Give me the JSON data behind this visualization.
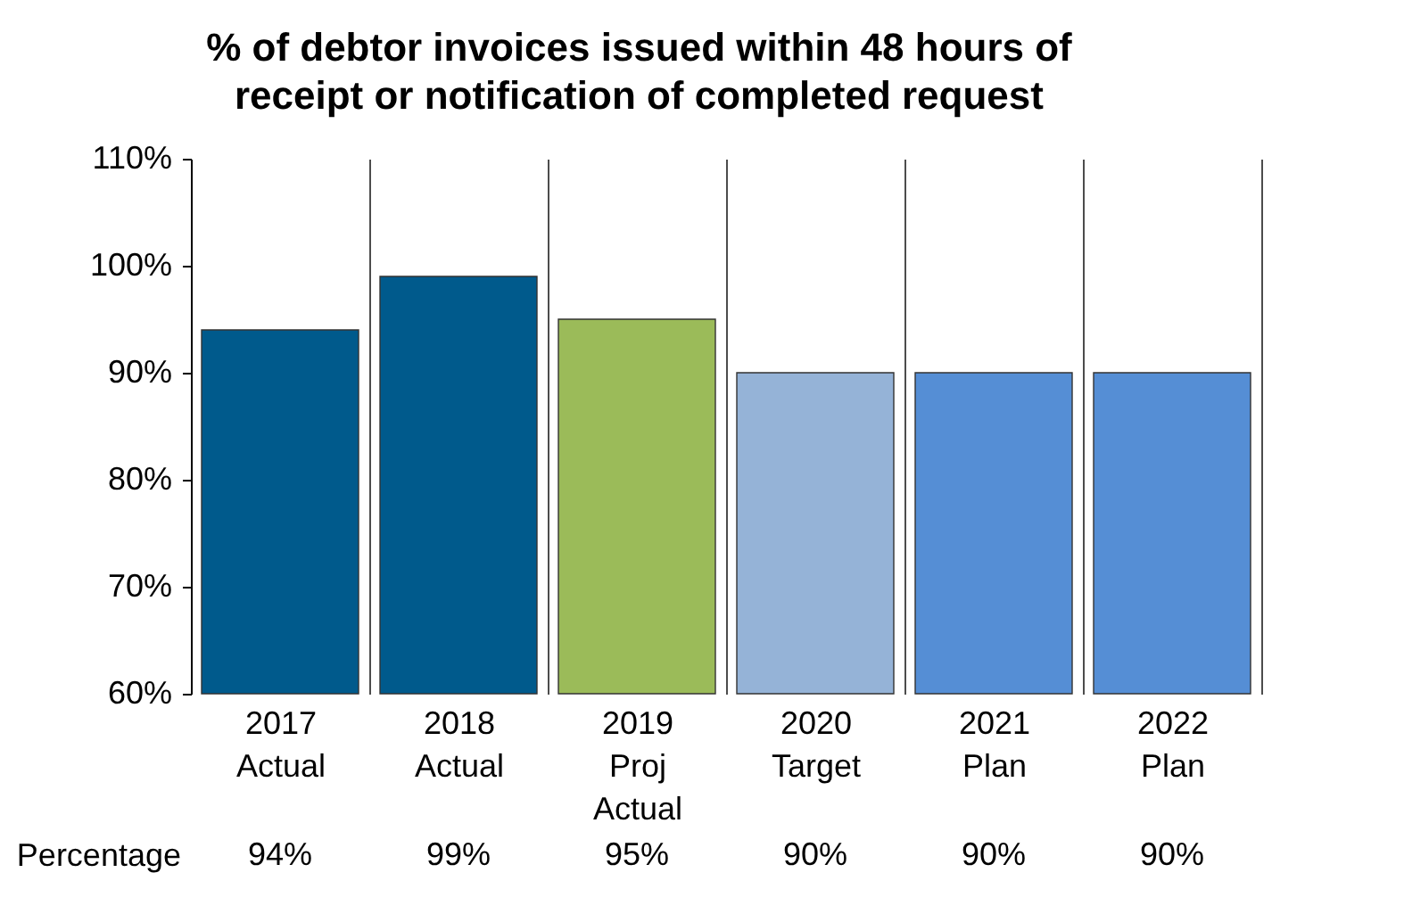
{
  "chart_data": {
    "type": "bar",
    "title": "% of debtor invoices issued within 48 hours of receipt or notification of completed request",
    "categories": [
      "2017 Actual",
      "2018 Actual",
      "2019 Proj Actual",
      "2020 Target",
      "2021 Plan",
      "2022 Plan"
    ],
    "series": [
      {
        "name": "Percentage",
        "values": [
          94,
          99,
          95,
          90,
          90,
          90
        ]
      }
    ],
    "colors": [
      "#005a8c",
      "#005a8c",
      "#9bbb59",
      "#95b3d7",
      "#558ed5",
      "#558ed5"
    ],
    "ylim": [
      60,
      110
    ],
    "yticks": [
      {
        "value": 60,
        "label": "60%"
      },
      {
        "value": 70,
        "label": "70%"
      },
      {
        "value": 80,
        "label": "80%"
      },
      {
        "value": 90,
        "label": "90%"
      },
      {
        "value": 100,
        "label": "100%"
      },
      {
        "value": 110,
        "label": "110%"
      }
    ],
    "value_labels": [
      "94%",
      "99%",
      "95%",
      "90%",
      "90%",
      "90%"
    ],
    "grid": false
  }
}
